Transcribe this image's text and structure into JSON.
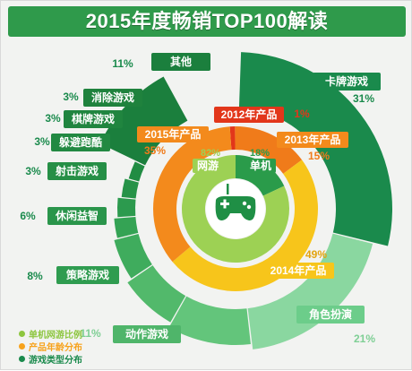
{
  "title": "2015年度畅销TOP100解读",
  "legend": [
    {
      "label": "单机网游比例",
      "color": "#8dc63f"
    },
    {
      "label": "产品年龄分布",
      "color": "#f7a21b"
    },
    {
      "label": "游戏类型分布",
      "color": "#1a8a4c"
    }
  ],
  "colors": {
    "outer_green": "#1a8a4c",
    "outer_light": "#8ad7a0",
    "ring_orange": "#f38a1c",
    "ring_red": "#e2361a",
    "ring_yellow": "#f7c51b",
    "inner_light": "#9dd154",
    "inner_dark": "#2a9b4a",
    "label_orange": "#f07b1a"
  },
  "center_icon": "gamepad-icon",
  "chart_data": [
    {
      "type": "pie",
      "title": "游戏类型分布",
      "slices": [
        {
          "label": "卡牌游戏",
          "value": 31,
          "display": "31%"
        },
        {
          "label": "角色扮演",
          "value": 21,
          "display": "21%"
        },
        {
          "label": "动作游戏",
          "value": 11,
          "display": "11%"
        },
        {
          "label": "策略游戏",
          "value": 8,
          "display": "8%"
        },
        {
          "label": "休闲益智",
          "value": 6,
          "display": "6%"
        },
        {
          "label": "射击游戏",
          "value": 3,
          "display": "3%"
        },
        {
          "label": "躲避跑酷",
          "value": 3,
          "display": "3%"
        },
        {
          "label": "棋牌游戏",
          "value": 3,
          "display": "3%"
        },
        {
          "label": "消除游戏",
          "value": 3,
          "display": "3%"
        },
        {
          "label": "其他",
          "value": 11,
          "display": "11%"
        }
      ]
    },
    {
      "type": "pie",
      "title": "产品年龄分布",
      "slices": [
        {
          "label": "2012年产品",
          "value": 1,
          "display": "1%"
        },
        {
          "label": "2013年产品",
          "value": 15,
          "display": "15%"
        },
        {
          "label": "2014年产品",
          "value": 49,
          "display": "49%"
        },
        {
          "label": "2015年产品",
          "value": 35,
          "display": "35%"
        }
      ]
    },
    {
      "type": "pie",
      "title": "单机网游比例",
      "slices": [
        {
          "label": "单机",
          "value": 18,
          "display": "18%"
        },
        {
          "label": "网游",
          "value": 82,
          "display": "82%"
        }
      ]
    }
  ]
}
